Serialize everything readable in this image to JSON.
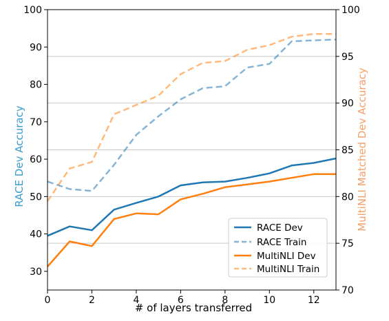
{
  "chart_data": {
    "type": "line",
    "xlabel": "# of layers transferred",
    "ylabel_left": "RACE Dev Accuracy",
    "ylabel_right": "MultiNLI Matched Dev Accuracy",
    "xlim": [
      0,
      13
    ],
    "ylim_left": [
      25,
      100
    ],
    "ylim_right": [
      70,
      100
    ],
    "xticks": [
      0,
      2,
      4,
      6,
      8,
      10,
      12
    ],
    "yticks_left": [
      30,
      40,
      50,
      60,
      70,
      80,
      90,
      100
    ],
    "yticks_right": [
      70,
      75,
      80,
      85,
      90,
      95,
      100
    ],
    "grid": "horizontal lines at right-axis ticks",
    "legend_position": "lower-right",
    "colors": {
      "left_axis": "#3b9dd0",
      "right_axis": "#f5a06a",
      "race": "#1f77b4",
      "multinli": "#ff7f0e",
      "grid": "#c8c8c8"
    },
    "series": [
      {
        "name": "RACE Dev",
        "axis": "left",
        "color": "#1f77b4",
        "style": "solid",
        "x": [
          0,
          1,
          2,
          3,
          4,
          5,
          6,
          7,
          8,
          9,
          10,
          11,
          12,
          13
        ],
        "values": [
          39.5,
          42,
          41,
          46.5,
          48.3,
          50,
          53,
          53.8,
          54,
          55,
          56.2,
          58.3,
          59,
          60.2
        ]
      },
      {
        "name": "RACE Train",
        "axis": "left",
        "color": "#1f77b4",
        "style": "dashed",
        "x": [
          0,
          1,
          2,
          3,
          4,
          5,
          6,
          7,
          8,
          9,
          10,
          11,
          12,
          13
        ],
        "values": [
          54,
          52,
          51.5,
          58.5,
          66.5,
          71.5,
          76,
          79,
          79.5,
          84.5,
          85.5,
          91.5,
          91.8,
          92
        ]
      },
      {
        "name": "MultiNLI Dev",
        "axis": "right",
        "color": "#ff7f0e",
        "style": "solid",
        "x": [
          0,
          1,
          2,
          3,
          4,
          5,
          6,
          7,
          8,
          9,
          10,
          11,
          12,
          13
        ],
        "values": [
          72.5,
          75.2,
          74.7,
          77.6,
          78.2,
          78.1,
          79.7,
          80.3,
          81,
          81.3,
          81.6,
          82,
          82.4,
          82.4
        ]
      },
      {
        "name": "MultiNLI Train",
        "axis": "right",
        "color": "#ff7f0e",
        "style": "dashed",
        "x": [
          0,
          1,
          2,
          3,
          4,
          5,
          6,
          7,
          8,
          9,
          10,
          11,
          12,
          13
        ],
        "values": [
          79.5,
          83,
          83.7,
          88.8,
          89.8,
          90.8,
          93.1,
          94.3,
          94.5,
          95.7,
          96.2,
          97.1,
          97.4,
          97.4
        ]
      }
    ]
  }
}
